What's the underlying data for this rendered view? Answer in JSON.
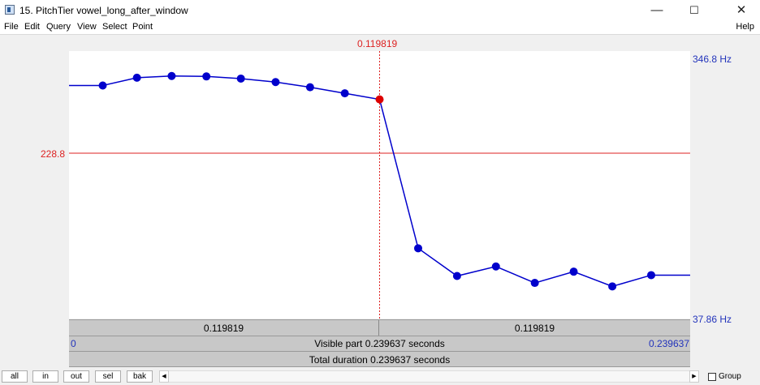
{
  "window": {
    "title": "15. PitchTier vowel_long_after_window",
    "controls": {
      "minimize": "—",
      "maximize": "☐",
      "close": "✕"
    }
  },
  "menu": {
    "items": [
      "File",
      "Edit",
      "Query",
      "View",
      "Select",
      "Point"
    ],
    "help": "Help"
  },
  "cursor": {
    "time_label": "0.119819",
    "time": 0.119819
  },
  "axis": {
    "top_label": "346.8 Hz",
    "bottom_label": "37.86 Hz",
    "y_max": 346.8,
    "y_min": 37.86,
    "t_min": 0,
    "t_max": 0.239637,
    "cursor_freq_label": "228.8",
    "cursor_freq": 228.8
  },
  "pitch_points": [
    {
      "t": 0.013,
      "f": 307
    },
    {
      "t": 0.0262,
      "f": 316
    },
    {
      "t": 0.0396,
      "f": 318
    },
    {
      "t": 0.053,
      "f": 317.5
    },
    {
      "t": 0.0663,
      "f": 315
    },
    {
      "t": 0.0797,
      "f": 311
    },
    {
      "t": 0.093,
      "f": 305
    },
    {
      "t": 0.1064,
      "f": 298
    },
    {
      "t": 0.119819,
      "f": 291,
      "selected": true
    },
    {
      "t": 0.1347,
      "f": 119
    },
    {
      "t": 0.1497,
      "f": 87
    },
    {
      "t": 0.1647,
      "f": 98
    },
    {
      "t": 0.1797,
      "f": 79
    },
    {
      "t": 0.1947,
      "f": 92
    },
    {
      "t": 0.2096,
      "f": 75
    },
    {
      "t": 0.2246,
      "f": 88
    }
  ],
  "segments": {
    "left": "0.119819",
    "right": "0.119819"
  },
  "visible": {
    "start": "0",
    "label": "Visible part 0.239637 seconds",
    "end": "0.239637"
  },
  "total": {
    "label": "Total duration 0.239637 seconds"
  },
  "zoom_buttons": [
    "all",
    "in",
    "out",
    "sel",
    "bak"
  ],
  "scroll": {
    "left_arrow": "◀",
    "right_arrow": "▶"
  },
  "group": {
    "label": "Group",
    "checked": false
  },
  "colors": {
    "curve": "#0000cc",
    "selected_point": "#dd0000",
    "cursor": "#dd2222",
    "axis_text": "#2233bb"
  }
}
